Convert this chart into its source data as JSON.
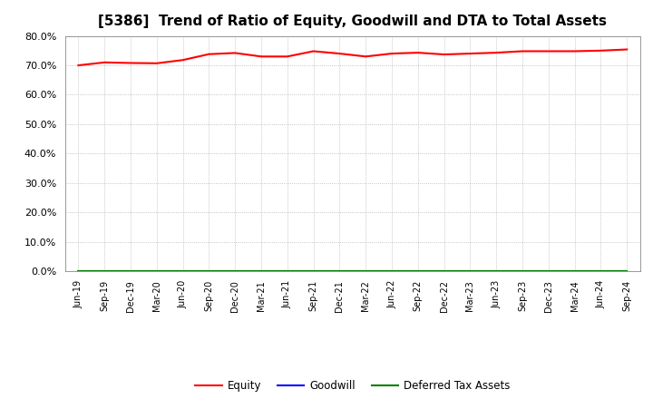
{
  "title": "[5386]  Trend of Ratio of Equity, Goodwill and DTA to Total Assets",
  "x_labels": [
    "Jun-19",
    "Sep-19",
    "Dec-19",
    "Mar-20",
    "Jun-20",
    "Sep-20",
    "Dec-20",
    "Mar-21",
    "Jun-21",
    "Sep-21",
    "Dec-21",
    "Mar-22",
    "Jun-22",
    "Sep-22",
    "Dec-22",
    "Mar-23",
    "Jun-23",
    "Sep-23",
    "Dec-23",
    "Mar-24",
    "Jun-24",
    "Sep-24"
  ],
  "equity": [
    0.7,
    0.71,
    0.708,
    0.707,
    0.718,
    0.738,
    0.742,
    0.73,
    0.73,
    0.748,
    0.74,
    0.73,
    0.74,
    0.743,
    0.737,
    0.74,
    0.743,
    0.748,
    0.748,
    0.748,
    0.75,
    0.754
  ],
  "goodwill": [
    0.0,
    0.0,
    0.0,
    0.0,
    0.0,
    0.0,
    0.0,
    0.0,
    0.0,
    0.0,
    0.0,
    0.0,
    0.0,
    0.0,
    0.0,
    0.0,
    0.0,
    0.0,
    0.0,
    0.0,
    0.0,
    0.0
  ],
  "dta": [
    0.0,
    0.0,
    0.0,
    0.0,
    0.0,
    0.0,
    0.0,
    0.0,
    0.0,
    0.0,
    0.0,
    0.0,
    0.0,
    0.0,
    0.0,
    0.0,
    0.0,
    0.0,
    0.0,
    0.0,
    0.0,
    0.0
  ],
  "equity_color": "#FF0000",
  "goodwill_color": "#0000FF",
  "dta_color": "#008000",
  "ylim": [
    0.0,
    0.8
  ],
  "yticks": [
    0.0,
    0.1,
    0.2,
    0.3,
    0.4,
    0.5,
    0.6,
    0.7,
    0.8
  ],
  "background_color": "#FFFFFF",
  "plot_bg_color": "#FFFFFF",
  "grid_color": "#AAAAAA",
  "title_fontsize": 11,
  "legend_labels": [
    "Equity",
    "Goodwill",
    "Deferred Tax Assets"
  ]
}
